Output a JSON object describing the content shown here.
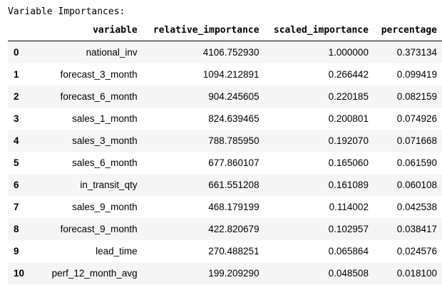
{
  "caption": "Variable Importances:",
  "columns": [
    "",
    "variable",
    "relative_importance",
    "scaled_importance",
    "percentage"
  ],
  "rows": [
    {
      "index": "0",
      "variable": "national_inv",
      "relative_importance": "4106.752930",
      "scaled_importance": "1.000000",
      "percentage": "0.373134"
    },
    {
      "index": "1",
      "variable": "forecast_3_month",
      "relative_importance": "1094.212891",
      "scaled_importance": "0.266442",
      "percentage": "0.099419"
    },
    {
      "index": "2",
      "variable": "forecast_6_month",
      "relative_importance": "904.245605",
      "scaled_importance": "0.220185",
      "percentage": "0.082159"
    },
    {
      "index": "3",
      "variable": "sales_1_month",
      "relative_importance": "824.639465",
      "scaled_importance": "0.200801",
      "percentage": "0.074926"
    },
    {
      "index": "4",
      "variable": "sales_3_month",
      "relative_importance": "788.785950",
      "scaled_importance": "0.192070",
      "percentage": "0.071668"
    },
    {
      "index": "5",
      "variable": "sales_6_month",
      "relative_importance": "677.860107",
      "scaled_importance": "0.165060",
      "percentage": "0.061590"
    },
    {
      "index": "6",
      "variable": "in_transit_qty",
      "relative_importance": "661.551208",
      "scaled_importance": "0.161089",
      "percentage": "0.060108"
    },
    {
      "index": "7",
      "variable": "sales_9_month",
      "relative_importance": "468.179199",
      "scaled_importance": "0.114002",
      "percentage": "0.042538"
    },
    {
      "index": "8",
      "variable": "forecast_9_month",
      "relative_importance": "422.820679",
      "scaled_importance": "0.102957",
      "percentage": "0.038417"
    },
    {
      "index": "9",
      "variable": "lead_time",
      "relative_importance": "270.488251",
      "scaled_importance": "0.065864",
      "percentage": "0.024576"
    },
    {
      "index": "10",
      "variable": "perf_12_month_avg",
      "relative_importance": "199.209290",
      "scaled_importance": "0.048508",
      "percentage": "0.018100"
    }
  ]
}
